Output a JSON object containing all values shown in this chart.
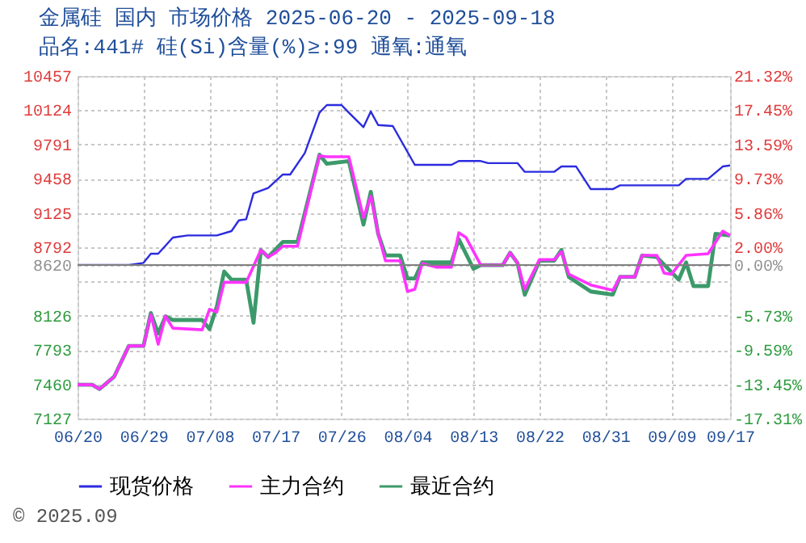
{
  "chart_data": {
    "type": "line",
    "title": "金属硅 国内 市场价格 2025-06-20 - 2025-09-18",
    "subtitle": "品名:441# 硅(Si)含量(%)≥:99 通氧:通氧",
    "annotations": [
      "© 2025.09"
    ],
    "xlim": [
      "2025-06-20",
      "2025-09-17"
    ],
    "xticks": [
      {
        "value": "2025-06-20",
        "label": "06/20"
      },
      {
        "value": "2025-06-29",
        "label": "06/29"
      },
      {
        "value": "2025-07-08",
        "label": "07/08"
      },
      {
        "value": "2025-07-17",
        "label": "07/17"
      },
      {
        "value": "2025-07-26",
        "label": "07/26"
      },
      {
        "value": "2025-08-04",
        "label": "08/04"
      },
      {
        "value": "2025-08-13",
        "label": "08/13"
      },
      {
        "value": "2025-08-22",
        "label": "08/22"
      },
      {
        "value": "2025-08-31",
        "label": "08/31"
      },
      {
        "value": "2025-09-09",
        "label": "09/09"
      },
      {
        "value": "2025-09-17",
        "label": "09/17"
      }
    ],
    "ylim": [
      7127,
      10457
    ],
    "yticks": [
      7127,
      7460,
      7793,
      8126,
      {
        "value": 8459,
        "label": null
      },
      8620,
      8792,
      9125,
      9458,
      9791,
      10124,
      10457
    ],
    "y2lim": [
      -17.31,
      21.32
    ],
    "y2ticks": [
      {
        "value": -17.31,
        "label": "-17.31%"
      },
      {
        "value": -13.45,
        "label": "-13.45%"
      },
      {
        "value": -9.59,
        "label": "-9.59%"
      },
      {
        "value": -5.73,
        "label": "-5.73%"
      },
      {
        "value": -1.87,
        "label": null
      },
      {
        "value": 0,
        "label": "0.00%"
      },
      {
        "value": 2.0,
        "label": "2.00%"
      },
      {
        "value": 5.86,
        "label": "5.86%"
      },
      {
        "value": 9.73,
        "label": "9.73%"
      },
      {
        "value": 13.59,
        "label": "13.59%"
      },
      {
        "value": 17.45,
        "label": "17.45%"
      },
      {
        "value": 21.32,
        "label": "21.32%"
      }
    ],
    "ref_lines": [
      {
        "axis": "y2",
        "value": 0,
        "color": "#808080"
      }
    ],
    "grid": true,
    "legend": "bottom",
    "marker": "none",
    "line_style": "solid",
    "series": [
      {
        "name": "现货价格",
        "color": "#2b2bdf",
        "x": [
          "2025-06-20",
          "2025-06-27",
          "2025-06-29",
          "2025-06-30",
          "2025-07-01",
          "2025-07-03",
          "2025-07-05",
          "2025-07-09",
          "2025-07-11",
          "2025-07-12",
          "2025-07-13",
          "2025-07-14",
          "2025-07-16",
          "2025-07-18",
          "2025-07-19",
          "2025-07-21",
          "2025-07-23",
          "2025-07-24",
          "2025-07-26",
          "2025-07-27",
          "2025-07-29",
          "2025-07-30",
          "2025-07-31",
          "2025-08-02",
          "2025-08-05",
          "2025-08-10",
          "2025-08-11",
          "2025-08-14",
          "2025-08-15",
          "2025-08-19",
          "2025-08-20",
          "2025-08-24",
          "2025-08-25",
          "2025-08-27",
          "2025-08-29",
          "2025-09-01",
          "2025-09-02",
          "2025-09-10",
          "2025-09-11",
          "2025-09-14",
          "2025-09-16",
          "2025-09-17"
        ],
        "values": [
          8620,
          8620,
          8640,
          8729,
          8729,
          8886,
          8907,
          8907,
          8949,
          9053,
          9064,
          9315,
          9368,
          9499,
          9499,
          9708,
          10101,
          10174,
          10174,
          10101,
          9960,
          10111,
          9980,
          9970,
          9593,
          9593,
          9630,
          9630,
          9610,
          9610,
          9525,
          9525,
          9577,
          9577,
          9357,
          9357,
          9394,
          9394,
          9457,
          9457,
          9577,
          9587
        ]
      },
      {
        "name": "主力合约",
        "color": "#ff33ff",
        "x": [
          "2025-06-20",
          "2025-06-22",
          "2025-06-23",
          "2025-06-25",
          "2025-06-27",
          "2025-06-29",
          "2025-06-30",
          "2025-07-01",
          "2025-07-02",
          "2025-07-03",
          "2025-07-07",
          "2025-07-08",
          "2025-07-09",
          "2025-07-10",
          "2025-07-13",
          "2025-07-15",
          "2025-07-16",
          "2025-07-17",
          "2025-07-18",
          "2025-07-20",
          "2025-07-23",
          "2025-07-24",
          "2025-07-27",
          "2025-07-29",
          "2025-07-30",
          "2025-07-31",
          "2025-08-01",
          "2025-08-03",
          "2025-08-04",
          "2025-08-05",
          "2025-08-06",
          "2025-08-08",
          "2025-08-10",
          "2025-08-11",
          "2025-08-12",
          "2025-08-14",
          "2025-08-17",
          "2025-08-18",
          "2025-08-19",
          "2025-08-20",
          "2025-08-22",
          "2025-08-24",
          "2025-08-25",
          "2025-08-26",
          "2025-08-29",
          "2025-09-01",
          "2025-09-02",
          "2025-09-04",
          "2025-09-05",
          "2025-09-07",
          "2025-09-08",
          "2025-09-09",
          "2025-09-11",
          "2025-09-14",
          "2025-09-16",
          "2025-09-17"
        ],
        "values": [
          7456,
          7456,
          7414,
          7535,
          7833,
          7833,
          8137,
          7849,
          8121,
          8006,
          7990,
          8189,
          8163,
          8451,
          8451,
          8765,
          8697,
          8739,
          8802,
          8802,
          9682,
          9672,
          9672,
          9080,
          9289,
          8923,
          8661,
          8661,
          8362,
          8383,
          8634,
          8598,
          8598,
          8933,
          8886,
          8619,
          8619,
          8739,
          8640,
          8383,
          8671,
          8671,
          8750,
          8530,
          8425,
          8373,
          8504,
          8504,
          8713,
          8713,
          8540,
          8530,
          8713,
          8729,
          8949,
          8907
        ]
      },
      {
        "name": "最近合约",
        "color": "#3c9a6a",
        "x": [
          "2025-06-20",
          "2025-06-22",
          "2025-06-23",
          "2025-06-25",
          "2025-06-27",
          "2025-06-29",
          "2025-06-30",
          "2025-07-01",
          "2025-07-02",
          "2025-07-03",
          "2025-07-07",
          "2025-07-08",
          "2025-07-09",
          "2025-07-10",
          "2025-07-11",
          "2025-07-13",
          "2025-07-14",
          "2025-07-15",
          "2025-07-16",
          "2025-07-18",
          "2025-07-20",
          "2025-07-23",
          "2025-07-24",
          "2025-07-27",
          "2025-07-29",
          "2025-07-30",
          "2025-07-31",
          "2025-08-01",
          "2025-08-03",
          "2025-08-04",
          "2025-08-05",
          "2025-08-06",
          "2025-08-10",
          "2025-08-11",
          "2025-08-13",
          "2025-08-14",
          "2025-08-17",
          "2025-08-18",
          "2025-08-19",
          "2025-08-20",
          "2025-08-22",
          "2025-08-24",
          "2025-08-25",
          "2025-08-26",
          "2025-08-29",
          "2025-09-01",
          "2025-09-02",
          "2025-09-04",
          "2025-09-05",
          "2025-09-07",
          "2025-09-10",
          "2025-09-11",
          "2025-09-12",
          "2025-09-14",
          "2025-09-15",
          "2025-09-17"
        ],
        "values": [
          7456,
          7456,
          7414,
          7535,
          7833,
          7833,
          8153,
          7954,
          8121,
          8085,
          8085,
          7996,
          8216,
          8556,
          8477,
          8477,
          8058,
          8765,
          8697,
          8844,
          8844,
          9692,
          9603,
          9630,
          9012,
          9331,
          8923,
          8713,
          8713,
          8488,
          8488,
          8645,
          8645,
          8870,
          8582,
          8619,
          8619,
          8739,
          8640,
          8331,
          8661,
          8661,
          8766,
          8504,
          8362,
          8331,
          8504,
          8504,
          8713,
          8697,
          8477,
          8645,
          8415,
          8415,
          8923,
          8907
        ]
      }
    ]
  }
}
